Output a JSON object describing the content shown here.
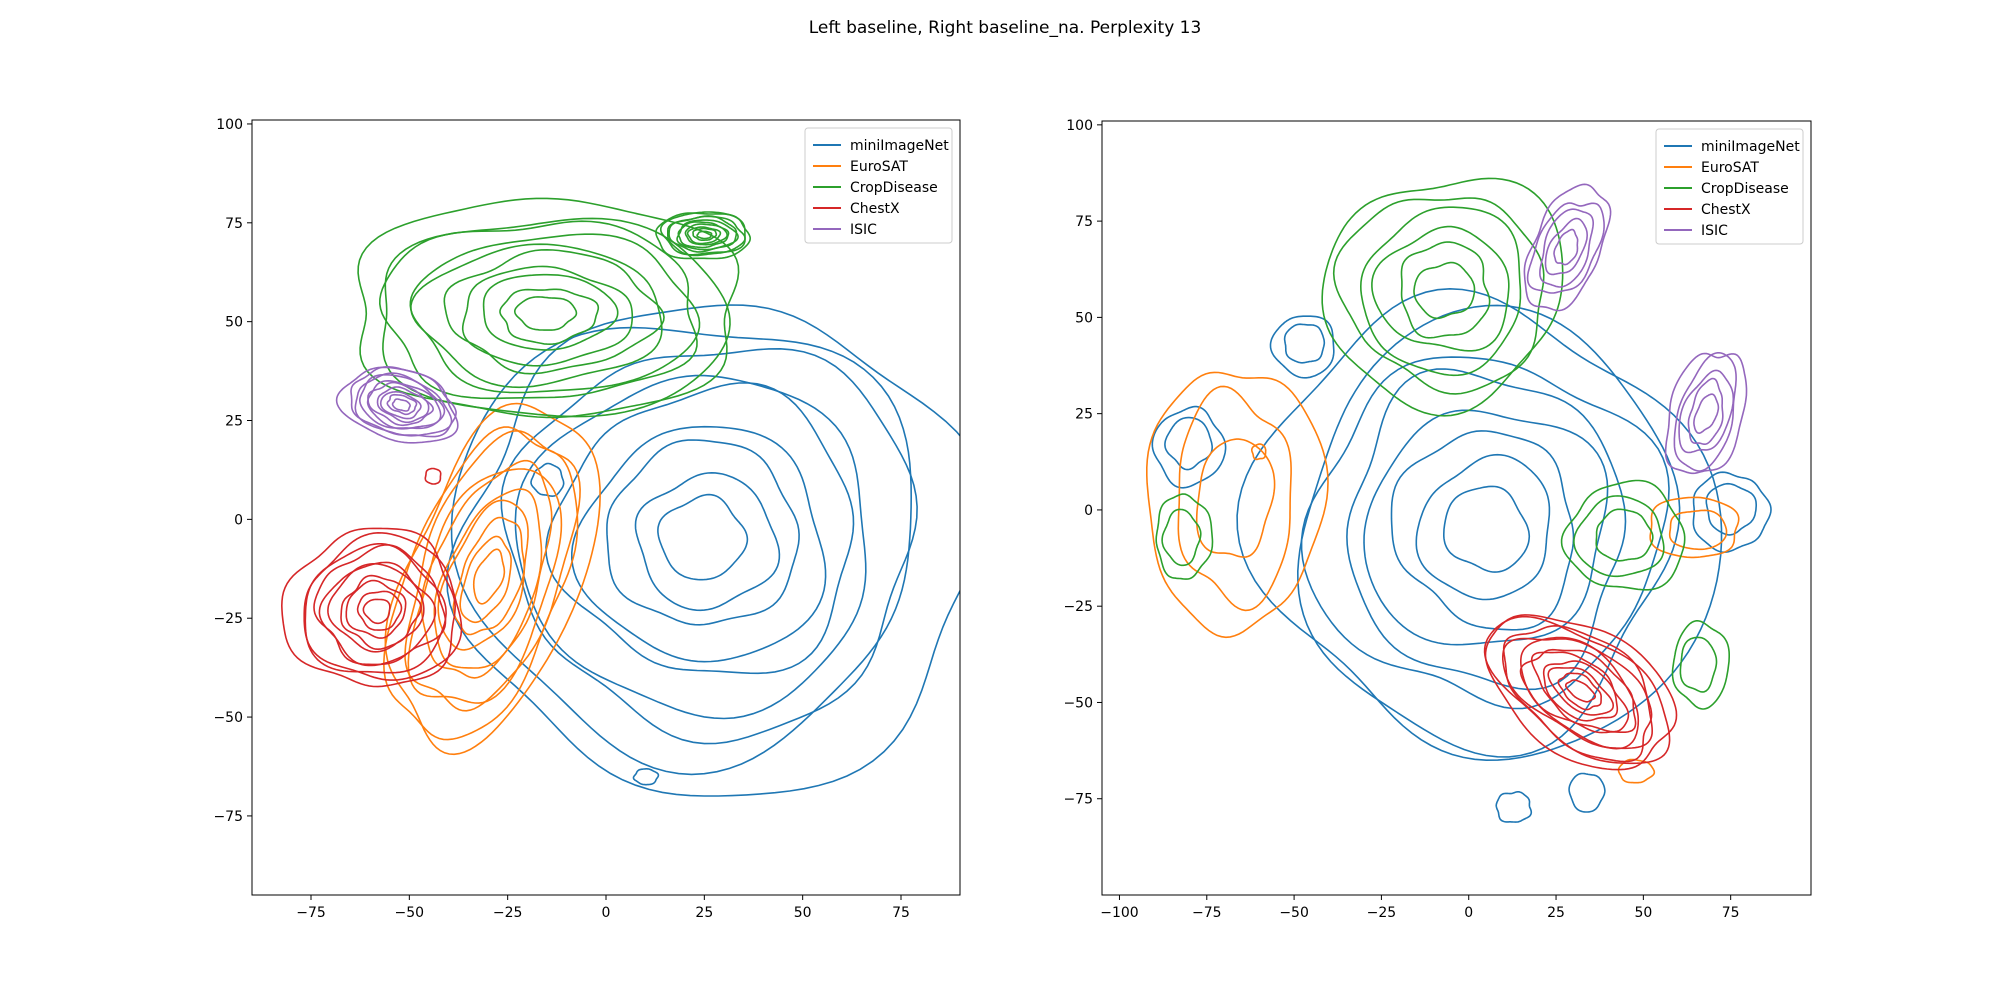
{
  "figure": {
    "suptitle": "Left baseline, Right baseline_na. Perplexity 13"
  },
  "colors": {
    "miniImageNet": "#1f77b4",
    "EuroSAT": "#ff7f0e",
    "CropDisease": "#2ca02c",
    "ChestX": "#d62728",
    "ISIC": "#9467bd"
  },
  "chart_data": [
    {
      "type": "contour",
      "title": "",
      "xlabel": "",
      "ylabel": "",
      "xlim": [
        -90,
        90
      ],
      "ylim": [
        -95,
        101
      ],
      "xticks": [
        -75,
        -50,
        -25,
        0,
        25,
        50,
        75
      ],
      "yticks": [
        -75,
        -50,
        -25,
        0,
        25,
        50,
        75,
        100
      ],
      "grid": false,
      "legend_position": "upper right",
      "legend": [
        "miniImageNet",
        "EuroSAT",
        "CropDisease",
        "ChestX",
        "ISIC"
      ],
      "series": [
        {
          "name": "miniImageNet",
          "levels": 9,
          "regions": [
            {
              "cx": 25,
              "cy": -5,
              "rx": 65,
              "ry": 62,
              "rot": 0,
              "peak": true
            }
          ],
          "small_islands": [
            {
              "cx": -15,
              "cy": 10,
              "rx": 4,
              "ry": 4
            },
            {
              "cx": 10,
              "cy": -65,
              "rx": 3,
              "ry": 2
            }
          ]
        },
        {
          "name": "EuroSAT",
          "levels": 10,
          "regions": [
            {
              "cx": -30,
              "cy": -15,
              "rx": 22,
              "ry": 45,
              "rot": -20
            }
          ]
        },
        {
          "name": "CropDisease",
          "levels": 10,
          "regions": [
            {
              "cx": -15,
              "cy": 52,
              "rx": 50,
              "ry": 28,
              "rot": 0
            },
            {
              "cx": 25,
              "cy": 72,
              "rx": 12,
              "ry": 6,
              "rot": 0
            }
          ]
        },
        {
          "name": "ChestX",
          "levels": 10,
          "regions": [
            {
              "cx": -58,
              "cy": -23,
              "rx": 22,
              "ry": 20,
              "rot": 0
            }
          ],
          "small_islands": [
            {
              "cx": -44,
              "cy": 11,
              "rx": 2,
              "ry": 2
            }
          ]
        },
        {
          "name": "ISIC",
          "levels": 10,
          "regions": [
            {
              "cx": -52,
              "cy": 29,
              "rx": 15,
              "ry": 9,
              "rot": -15
            }
          ]
        }
      ]
    },
    {
      "type": "contour",
      "title": "",
      "xlabel": "",
      "ylabel": "",
      "xlim": [
        -105,
        98
      ],
      "ylim": [
        -100,
        101
      ],
      "xticks": [
        -100,
        -75,
        -50,
        -25,
        0,
        25,
        50,
        75
      ],
      "yticks": [
        -75,
        -50,
        -25,
        0,
        25,
        50,
        75,
        100
      ],
      "grid": false,
      "legend_position": "upper right",
      "legend": [
        "miniImageNet",
        "EuroSAT",
        "CropDisease",
        "ChestX",
        "ISIC"
      ],
      "series": [
        {
          "name": "miniImageNet",
          "levels": 8,
          "regions": [
            {
              "cx": 5,
              "cy": -5,
              "rx": 63,
              "ry": 60,
              "rot": 0,
              "peak": true
            }
          ],
          "small_islands": [
            {
              "cx": -80,
              "cy": 17,
              "rx": 10,
              "ry": 10
            },
            {
              "cx": -47,
              "cy": 43,
              "rx": 9,
              "ry": 8
            },
            {
              "cx": 75,
              "cy": 0,
              "rx": 11,
              "ry": 10
            },
            {
              "cx": 13,
              "cy": -77,
              "rx": 5,
              "ry": 4
            },
            {
              "cx": 34,
              "cy": -73,
              "rx": 5,
              "ry": 5
            }
          ]
        },
        {
          "name": "EuroSAT",
          "levels": 3,
          "regions": [
            {
              "cx": -67,
              "cy": 3,
              "rx": 24,
              "ry": 36,
              "rot": 0
            }
          ],
          "small_islands": [
            {
              "cx": 65,
              "cy": -5,
              "rx": 13,
              "ry": 8
            },
            {
              "cx": 48,
              "cy": -68,
              "rx": 5,
              "ry": 3
            },
            {
              "cx": -60,
              "cy": 15,
              "rx": 2,
              "ry": 2
            }
          ]
        },
        {
          "name": "CropDisease",
          "levels": 6,
          "regions": [
            {
              "cx": -7,
              "cy": 57,
              "rx": 34,
              "ry": 30,
              "rot": 0
            }
          ],
          "small_islands": [
            {
              "cx": -82,
              "cy": -7,
              "rx": 8,
              "ry": 11
            },
            {
              "cx": 44,
              "cy": -7,
              "rx": 17,
              "ry": 14
            },
            {
              "cx": 66,
              "cy": -40,
              "rx": 8,
              "ry": 11
            }
          ]
        },
        {
          "name": "ChestX",
          "levels": 11,
          "regions": [
            {
              "cx": 32,
              "cy": -47,
              "rx": 30,
              "ry": 16,
              "rot": -30
            }
          ]
        },
        {
          "name": "ISIC",
          "levels": 5,
          "regions": [
            {
              "cx": 28,
              "cy": 68,
              "rx": 10,
              "ry": 17,
              "rot": -30
            },
            {
              "cx": 68,
              "cy": 25,
              "rx": 10,
              "ry": 18,
              "rot": -20
            }
          ]
        }
      ]
    }
  ]
}
